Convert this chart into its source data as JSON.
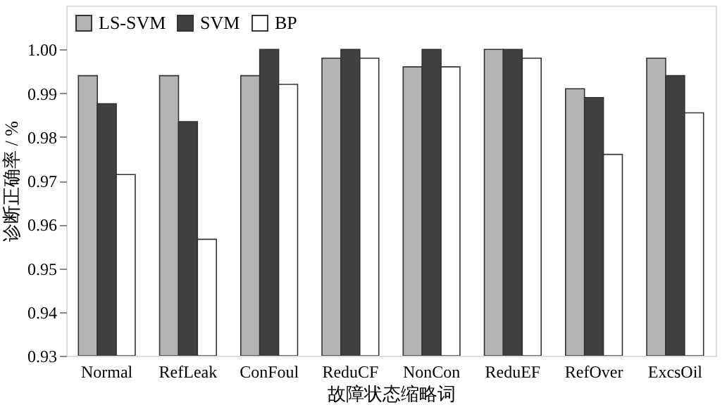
{
  "chart_data": {
    "type": "bar",
    "xlabel": "故障状态缩略词",
    "ylabel": "诊断正确率 / %",
    "categories": [
      "Normal",
      "RefLeak",
      "ConFoul",
      "ReduCF",
      "NonCon",
      "ReduEF",
      "RefOver",
      "ExcsOil"
    ],
    "series": [
      {
        "name": "LS-SVM",
        "color": "#b4b4b4",
        "values": [
          0.994,
          0.994,
          0.994,
          0.998,
          0.996,
          1.0,
          0.991,
          0.998
        ]
      },
      {
        "name": "SVM",
        "color": "#404040",
        "values": [
          0.9876,
          0.9835,
          1.0,
          1.0,
          1.0,
          1.0,
          0.989,
          0.994
        ]
      },
      {
        "name": "BP",
        "color": "#ffffff",
        "values": [
          0.9714,
          0.9566,
          0.992,
          0.998,
          0.996,
          0.998,
          0.976,
          0.9855
        ]
      }
    ],
    "ylim": [
      0.93,
      1.01
    ],
    "yticks": [
      {
        "value": 0.93,
        "label": "0.93"
      },
      {
        "value": 0.94,
        "label": "0.94"
      },
      {
        "value": 0.95,
        "label": "0.95"
      },
      {
        "value": 0.96,
        "label": "0.96"
      },
      {
        "value": 0.97,
        "label": "0.97"
      },
      {
        "value": 0.98,
        "label": "0.98"
      },
      {
        "value": 0.99,
        "label": "0.99"
      },
      {
        "value": 1.0,
        "label": "1.00"
      }
    ],
    "grid": false,
    "legend": "top left"
  }
}
